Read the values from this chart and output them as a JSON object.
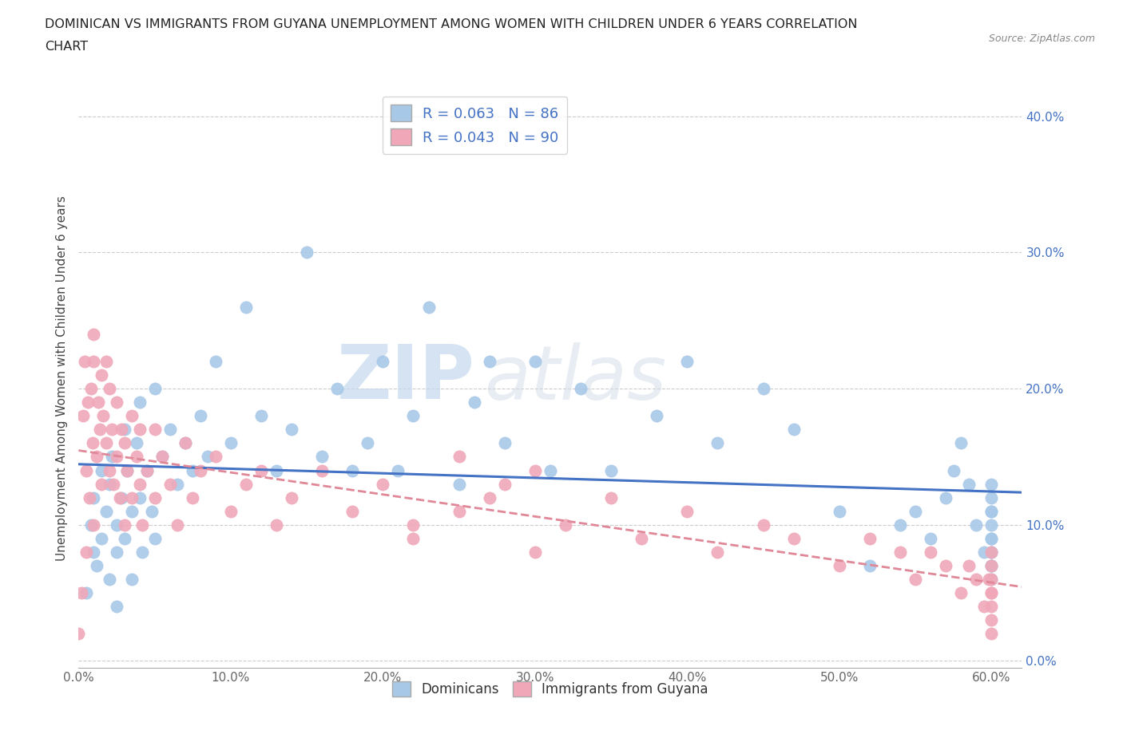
{
  "title_line1": "DOMINICAN VS IMMIGRANTS FROM GUYANA UNEMPLOYMENT AMONG WOMEN WITH CHILDREN UNDER 6 YEARS CORRELATION",
  "title_line2": "CHART",
  "source_text": "Source: ZipAtlas.com",
  "ylabel": "Unemployment Among Women with Children Under 6 years",
  "xlim": [
    0.0,
    0.62
  ],
  "ylim": [
    -0.005,
    0.42
  ],
  "xticks": [
    0.0,
    0.1,
    0.2,
    0.3,
    0.4,
    0.5,
    0.6
  ],
  "xticklabels": [
    "0.0%",
    "10.0%",
    "20.0%",
    "30.0%",
    "40.0%",
    "50.0%",
    "60.0%"
  ],
  "yticks": [
    0.0,
    0.1,
    0.2,
    0.3,
    0.4
  ],
  "yticklabels": [
    "0.0%",
    "10.0%",
    "20.0%",
    "30.0%",
    "40.0%"
  ],
  "dominican_color": "#a8c8e8",
  "guyana_color": "#f0a8b8",
  "trend_dominican_color": "#4472c4",
  "trend_guyana_color": "#e08898",
  "R_dominican": 0.063,
  "N_dominican": 86,
  "R_guyana": 0.043,
  "N_guyana": 90,
  "watermark_zip": "ZIP",
  "watermark_atlas": "atlas",
  "legend_labels": [
    "Dominicans",
    "Immigrants from Guyana"
  ],
  "dominican_x": [
    0.005,
    0.008,
    0.01,
    0.01,
    0.012,
    0.015,
    0.015,
    0.018,
    0.02,
    0.02,
    0.022,
    0.025,
    0.025,
    0.025,
    0.028,
    0.03,
    0.03,
    0.032,
    0.035,
    0.035,
    0.038,
    0.04,
    0.04,
    0.042,
    0.045,
    0.048,
    0.05,
    0.05,
    0.055,
    0.06,
    0.065,
    0.07,
    0.075,
    0.08,
    0.085,
    0.09,
    0.1,
    0.11,
    0.12,
    0.13,
    0.14,
    0.15,
    0.16,
    0.17,
    0.18,
    0.19,
    0.2,
    0.21,
    0.22,
    0.23,
    0.25,
    0.26,
    0.27,
    0.28,
    0.3,
    0.31,
    0.33,
    0.35,
    0.38,
    0.4,
    0.42,
    0.45,
    0.47,
    0.5,
    0.52,
    0.54,
    0.55,
    0.56,
    0.57,
    0.575,
    0.58,
    0.585,
    0.59,
    0.595,
    0.6,
    0.6,
    0.6,
    0.6,
    0.6,
    0.6,
    0.6,
    0.6,
    0.6,
    0.6,
    0.6,
    0.6
  ],
  "dominican_y": [
    0.05,
    0.1,
    0.08,
    0.12,
    0.07,
    0.14,
    0.09,
    0.11,
    0.13,
    0.06,
    0.15,
    0.1,
    0.08,
    0.04,
    0.12,
    0.17,
    0.09,
    0.14,
    0.11,
    0.06,
    0.16,
    0.19,
    0.12,
    0.08,
    0.14,
    0.11,
    0.2,
    0.09,
    0.15,
    0.17,
    0.13,
    0.16,
    0.14,
    0.18,
    0.15,
    0.22,
    0.16,
    0.26,
    0.18,
    0.14,
    0.17,
    0.3,
    0.15,
    0.2,
    0.14,
    0.16,
    0.22,
    0.14,
    0.18,
    0.26,
    0.13,
    0.19,
    0.22,
    0.16,
    0.22,
    0.14,
    0.2,
    0.14,
    0.18,
    0.22,
    0.16,
    0.2,
    0.17,
    0.11,
    0.07,
    0.1,
    0.11,
    0.09,
    0.12,
    0.14,
    0.16,
    0.13,
    0.1,
    0.08,
    0.11,
    0.09,
    0.13,
    0.07,
    0.1,
    0.12,
    0.08,
    0.06,
    0.09,
    0.07,
    0.11,
    0.08
  ],
  "guyana_x": [
    0.0,
    0.002,
    0.003,
    0.004,
    0.005,
    0.005,
    0.006,
    0.007,
    0.008,
    0.009,
    0.01,
    0.01,
    0.01,
    0.012,
    0.013,
    0.014,
    0.015,
    0.015,
    0.016,
    0.018,
    0.018,
    0.02,
    0.02,
    0.022,
    0.023,
    0.025,
    0.025,
    0.027,
    0.028,
    0.03,
    0.03,
    0.032,
    0.035,
    0.035,
    0.038,
    0.04,
    0.04,
    0.042,
    0.045,
    0.05,
    0.05,
    0.055,
    0.06,
    0.065,
    0.07,
    0.075,
    0.08,
    0.09,
    0.1,
    0.11,
    0.12,
    0.13,
    0.14,
    0.16,
    0.18,
    0.2,
    0.22,
    0.25,
    0.27,
    0.3,
    0.22,
    0.25,
    0.28,
    0.3,
    0.32,
    0.35,
    0.37,
    0.4,
    0.42,
    0.45,
    0.47,
    0.5,
    0.52,
    0.54,
    0.55,
    0.56,
    0.57,
    0.58,
    0.585,
    0.59,
    0.595,
    0.598,
    0.6,
    0.6,
    0.6,
    0.6,
    0.6,
    0.6,
    0.6,
    0.6
  ],
  "guyana_y": [
    0.02,
    0.05,
    0.18,
    0.22,
    0.08,
    0.14,
    0.19,
    0.12,
    0.2,
    0.16,
    0.22,
    0.1,
    0.24,
    0.15,
    0.19,
    0.17,
    0.21,
    0.13,
    0.18,
    0.16,
    0.22,
    0.14,
    0.2,
    0.17,
    0.13,
    0.15,
    0.19,
    0.12,
    0.17,
    0.16,
    0.1,
    0.14,
    0.18,
    0.12,
    0.15,
    0.13,
    0.17,
    0.1,
    0.14,
    0.17,
    0.12,
    0.15,
    0.13,
    0.1,
    0.16,
    0.12,
    0.14,
    0.15,
    0.11,
    0.13,
    0.14,
    0.1,
    0.12,
    0.14,
    0.11,
    0.13,
    0.1,
    0.15,
    0.12,
    0.14,
    0.09,
    0.11,
    0.13,
    0.08,
    0.1,
    0.12,
    0.09,
    0.11,
    0.08,
    0.1,
    0.09,
    0.07,
    0.09,
    0.08,
    0.06,
    0.08,
    0.07,
    0.05,
    0.07,
    0.06,
    0.04,
    0.06,
    0.08,
    0.05,
    0.03,
    0.05,
    0.07,
    0.04,
    0.06,
    0.02
  ]
}
